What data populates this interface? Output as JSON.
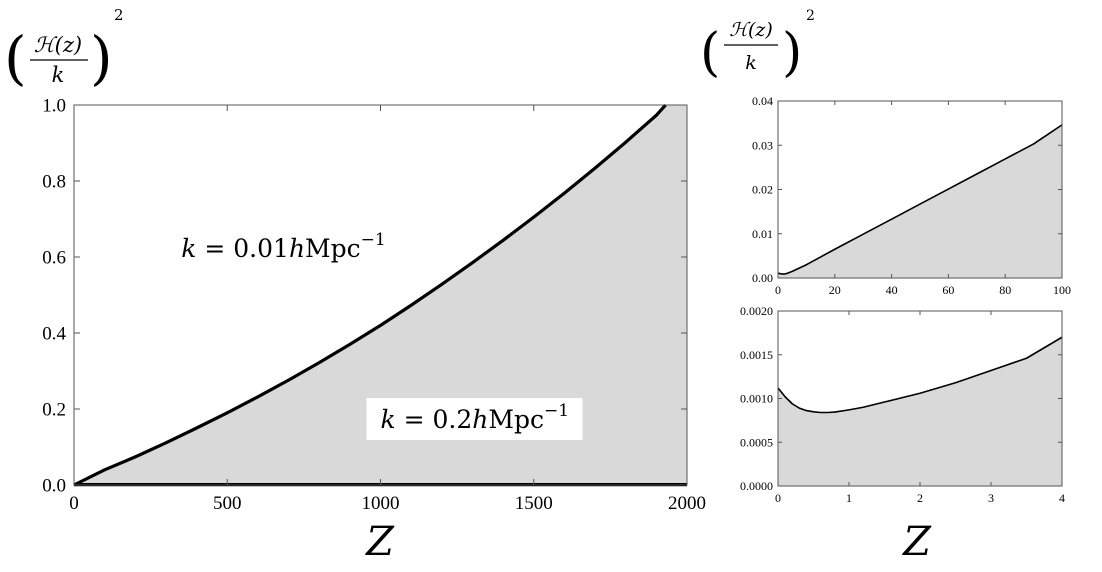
{
  "figure": {
    "ylabel_main": {
      "num": "ℋ(z)",
      "den": "k",
      "power": "2"
    },
    "ylabel_side": {
      "num": "ℋ(z)",
      "den": "k",
      "power": "2"
    }
  },
  "chart_data": [
    {
      "type": "area",
      "title": "",
      "xlabel": "Z",
      "ylabel": "(ℋ(z)/k)^2",
      "xlim": [
        0,
        2000
      ],
      "ylim": [
        0,
        1.0
      ],
      "x_ticks": [
        "0",
        "500",
        "1000",
        "1500",
        "2000"
      ],
      "y_ticks": [
        "0.0",
        "0.2",
        "0.4",
        "0.6",
        "0.8",
        "1.0"
      ],
      "fill_color": "#d9d9d9",
      "series": [
        {
          "x": [
            0,
            100,
            200,
            300,
            400,
            500,
            600,
            700,
            800,
            900,
            1000,
            1100,
            1200,
            1300,
            1400,
            1500,
            1600,
            1700,
            1800,
            1900,
            1930
          ],
          "y": [
            0.0,
            0.04,
            0.074,
            0.111,
            0.15,
            0.19,
            0.232,
            0.276,
            0.322,
            0.37,
            0.42,
            0.473,
            0.528,
            0.585,
            0.644,
            0.705,
            0.768,
            0.834,
            0.902,
            0.973,
            1.0
          ]
        },
        {
          "x": [
            0,
            2000
          ],
          "y": [
            0.001,
            0.001
          ]
        }
      ],
      "annotations": [
        {
          "text_k": "k",
          "text_eq": "= 0.01",
          "text_h": "h",
          "text_unit": "Mpc",
          "text_exp": "−1",
          "x": 350,
          "y": 0.6
        },
        {
          "text_k": "k",
          "text_eq": "= 0.2",
          "text_h": "h",
          "text_unit": "Mpc",
          "text_exp": "−1",
          "x": 1000,
          "y": 0.15
        }
      ],
      "grid": false
    },
    {
      "type": "area",
      "title": "",
      "xlabel": "",
      "ylabel": "",
      "xlim": [
        0,
        100
      ],
      "ylim": [
        0,
        0.04
      ],
      "x_ticks": [
        "0",
        "20",
        "40",
        "60",
        "80",
        "100"
      ],
      "y_ticks": [
        "0.00",
        "0.01",
        "0.02",
        "0.03",
        "0.04"
      ],
      "fill_color": "#d9d9d9",
      "series": [
        {
          "x": [
            0,
            1,
            2,
            3,
            5,
            10,
            20,
            30,
            40,
            50,
            60,
            70,
            80,
            90,
            100
          ],
          "y": [
            0.0011,
            0.00095,
            0.00088,
            0.001,
            0.0015,
            0.003,
            0.0065,
            0.0099,
            0.0133,
            0.0167,
            0.0201,
            0.0235,
            0.0269,
            0.0303,
            0.0346
          ]
        }
      ],
      "grid": false
    },
    {
      "type": "area",
      "title": "",
      "xlabel": "Z",
      "ylabel": "",
      "xlim": [
        0,
        4
      ],
      "ylim": [
        0,
        0.002
      ],
      "x_ticks": [
        "0",
        "1",
        "2",
        "3",
        "4"
      ],
      "y_ticks": [
        "0.0000",
        "0.0005",
        "0.0010",
        "0.0015",
        "0.0020"
      ],
      "fill_color": "#d9d9d9",
      "series": [
        {
          "x": [
            0,
            0.1,
            0.2,
            0.3,
            0.4,
            0.5,
            0.6,
            0.7,
            0.8,
            1.0,
            1.2,
            1.5,
            2.0,
            2.5,
            3.0,
            3.5,
            4.0
          ],
          "y": [
            0.00112,
            0.00102,
            0.00094,
            0.00089,
            0.000862,
            0.000848,
            0.00084,
            0.00084,
            0.000845,
            0.00087,
            0.0009,
            0.00096,
            0.00106,
            0.00118,
            0.00132,
            0.00146,
            0.0017
          ]
        }
      ],
      "grid": false
    }
  ]
}
